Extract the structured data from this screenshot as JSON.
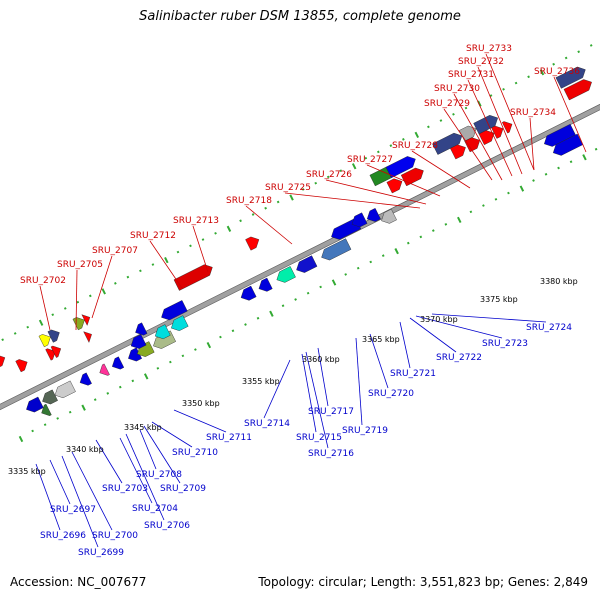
{
  "title": "Salinibacter ruber DSM 13855, complete genome",
  "footer": {
    "accession": "Accession: NC_007677",
    "summary": "Topology: circular; Length: 3,551,823 bp; Genes: 2,849"
  },
  "colors": {
    "top_labels": "#cc0000",
    "bottom_labels": "#0000cc",
    "backbone": "#999999",
    "ticks": "#33aa33"
  },
  "scale_labels": [
    "3335 kbp",
    "3340 kbp",
    "3345 kbp",
    "3350 kbp",
    "3355 kbp",
    "3360 kbp",
    "3365 kbp",
    "3370 kbp",
    "3375 kbp",
    "3380 kbp"
  ],
  "gene_labels_top": [
    "SRU_2702",
    "SRU_2705",
    "SRU_2707",
    "SRU_2712",
    "SRU_2713",
    "SRU_2718",
    "SRU_2725",
    "SRU_2726",
    "SRU_2727",
    "SRU_2728",
    "SRU_2729",
    "SRU_2730",
    "SRU_2731",
    "SRU_2732",
    "SRU_2733",
    "SRU_2734",
    "SRU_2736"
  ],
  "gene_labels_bottom": [
    "SRU_2696",
    "SRU_2697",
    "SRU_2699",
    "SRU_2700",
    "SRU_2703",
    "SRU_2704",
    "SRU_2706",
    "SRU_2708",
    "SRU_2709",
    "SRU_2710",
    "SRU_2711",
    "SRU_2714",
    "SRU_2715",
    "SRU_2716",
    "SRU_2717",
    "SRU_2719",
    "SRU_2720",
    "SRU_2721",
    "SRU_2722",
    "SRU_2723",
    "SRU_2724"
  ]
}
